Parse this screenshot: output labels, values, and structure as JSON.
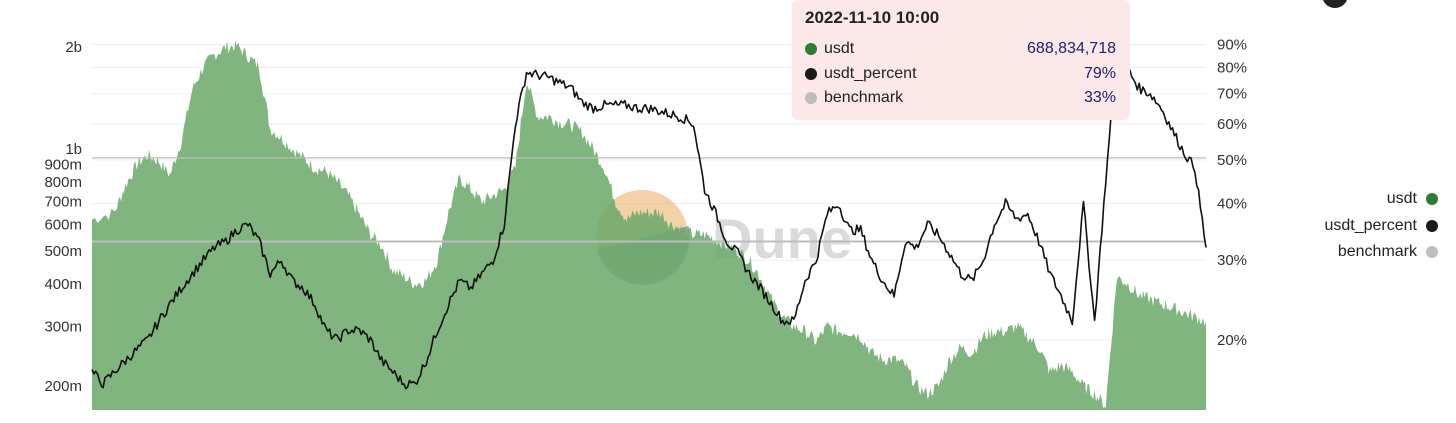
{
  "header": {
    "link_text": "",
    "sub_text": ""
  },
  "tooltip": {
    "title": "2022-11-10 10:00",
    "rows": [
      {
        "name": "usdt",
        "value": "688,834,718",
        "color": "#2e7d32"
      },
      {
        "name": "usdt_percent",
        "value": "79%",
        "color": "#1a1a1a"
      },
      {
        "name": "benchmark",
        "value": "33%",
        "color": "#bdbdbd"
      }
    ]
  },
  "legend": [
    {
      "name": "usdt",
      "color": "#2e7d32"
    },
    {
      "name": "usdt_percent",
      "color": "#1a1a1a"
    },
    {
      "name": "benchmark",
      "color": "#bdbdbd"
    }
  ],
  "watermark": "Dune",
  "chart_data": {
    "type": "area",
    "title": "",
    "xlabel": "",
    "ylabel": "",
    "grid": true,
    "legend_position": "right",
    "left_axis": {
      "scale": "log",
      "range": [
        170000000,
        2100000000
      ],
      "ticks": [
        {
          "value": 2000000000,
          "label": "2b"
        },
        {
          "value": 1000000000,
          "label": "1b"
        },
        {
          "value": 900000000,
          "label": "900m"
        },
        {
          "value": 800000000,
          "label": "800m"
        },
        {
          "value": 700000000,
          "label": "700m"
        },
        {
          "value": 600000000,
          "label": "600m"
        },
        {
          "value": 500000000,
          "label": "500m"
        },
        {
          "value": 400000000,
          "label": "400m"
        },
        {
          "value": 300000000,
          "label": "300m"
        },
        {
          "value": 200000000,
          "label": "200m"
        }
      ]
    },
    "right_axis": {
      "scale": "log",
      "range": [
        14,
        92
      ],
      "ticks": [
        {
          "value": 90,
          "label": "90%"
        },
        {
          "value": 80,
          "label": "80%"
        },
        {
          "value": 70,
          "label": "70%"
        },
        {
          "value": 60,
          "label": "60%"
        },
        {
          "value": 50,
          "label": "50%"
        },
        {
          "value": 40,
          "label": "40%"
        },
        {
          "value": 30,
          "label": "30%"
        },
        {
          "value": 20,
          "label": "20%"
        }
      ]
    },
    "x_range": [
      0,
      100
    ],
    "series": [
      {
        "name": "usdt",
        "axis": "left",
        "type": "area",
        "color": "#6aa86a",
        "x": [
          0,
          2,
          3,
          4,
          5,
          6,
          7,
          8,
          9,
          10,
          11,
          12,
          13,
          14,
          15,
          16,
          17,
          18,
          19,
          20,
          21,
          22,
          23,
          24,
          25,
          26,
          27,
          28,
          29,
          30,
          31,
          32,
          33,
          34,
          35,
          36,
          37,
          38,
          39,
          40,
          41,
          42,
          43,
          44,
          45,
          46,
          47,
          48,
          49,
          50,
          51,
          52,
          53,
          54,
          55,
          56,
          57,
          58,
          59,
          60,
          61,
          62,
          63,
          64,
          65,
          66,
          67,
          68,
          69,
          70,
          71,
          72,
          73,
          74,
          75,
          76,
          77,
          78,
          79,
          80,
          81,
          82,
          83,
          84,
          85,
          86,
          87,
          88,
          89,
          90,
          91,
          92,
          93,
          94,
          95,
          96,
          97,
          98,
          99,
          100
        ],
        "values": [
          620,
          650,
          780,
          900,
          960,
          920,
          840,
          1050,
          1500,
          1750,
          1900,
          2000,
          2020,
          1880,
          1750,
          1150,
          1080,
          1000,
          940,
          880,
          860,
          800,
          730,
          640,
          560,
          520,
          440,
          420,
          400,
          410,
          470,
          650,
          820,
          760,
          700,
          730,
          760,
          880,
          1600,
          1250,
          1250,
          1200,
          1180,
          1120,
          1000,
          880,
          700,
          620,
          650,
          650,
          650,
          600,
          580,
          560,
          560,
          540,
          520,
          500,
          470,
          420,
          360,
          320,
          300,
          290,
          270,
          300,
          290,
          290,
          280,
          250,
          240,
          240,
          230,
          200,
          190,
          200,
          240,
          260,
          250,
          280,
          290,
          290,
          300,
          280,
          260,
          220,
          230,
          220,
          200,
          190,
          175,
          420,
          400,
          370,
          360,
          350,
          340,
          330,
          320,
          310
        ]
      },
      {
        "name": "usdt_percent",
        "axis": "right",
        "type": "line",
        "color": "#111111",
        "x": [
          0,
          1,
          2,
          3,
          4,
          5,
          6,
          7,
          8,
          9,
          10,
          11,
          12,
          13,
          14,
          15,
          16,
          17,
          18,
          19,
          20,
          21,
          22,
          23,
          24,
          25,
          26,
          27,
          28,
          29,
          30,
          31,
          32,
          33,
          34,
          35,
          36,
          37,
          38,
          39,
          40,
          41,
          42,
          43,
          44,
          45,
          46,
          47,
          48,
          49,
          50,
          51,
          52,
          53,
          54,
          55,
          56,
          57,
          58,
          59,
          60,
          61,
          62,
          63,
          64,
          65,
          66,
          67,
          68,
          69,
          70,
          71,
          72,
          73,
          74,
          75,
          76,
          77,
          78,
          79,
          80,
          81,
          82,
          83,
          84,
          85,
          86,
          87,
          88,
          89,
          90,
          91,
          92,
          93,
          94,
          95,
          96,
          97,
          98,
          99,
          100
        ],
        "values": [
          17,
          16,
          17,
          18,
          19,
          20,
          22,
          24,
          26,
          28,
          30,
          32,
          33,
          35,
          36,
          33,
          28,
          30,
          27,
          26,
          24,
          21,
          20,
          21,
          21,
          20,
          18,
          17,
          16,
          16,
          18,
          21,
          24,
          27,
          26,
          28,
          30,
          36,
          60,
          78,
          77,
          76,
          74,
          72,
          67,
          65,
          66,
          66,
          66,
          65,
          65,
          64,
          63,
          62,
          60,
          43,
          38,
          33,
          31,
          28,
          26,
          24,
          22,
          22,
          27,
          30,
          38,
          40,
          35,
          35,
          30,
          27,
          25,
          33,
          32,
          36,
          34,
          31,
          28,
          27,
          30,
          36,
          40,
          37,
          38,
          33,
          28,
          25,
          22,
          40,
          22,
          45,
          87,
          79,
          72,
          70,
          65,
          58,
          52,
          48,
          32
        ]
      },
      {
        "name": "benchmark",
        "axis": "right",
        "type": "line",
        "color": "#bdbdbd",
        "x": [
          0,
          100
        ],
        "values": [
          33,
          33
        ]
      }
    ],
    "reference_lines": [
      {
        "axis": "right",
        "value": 50.5,
        "color": "#bdbdbd"
      }
    ]
  }
}
